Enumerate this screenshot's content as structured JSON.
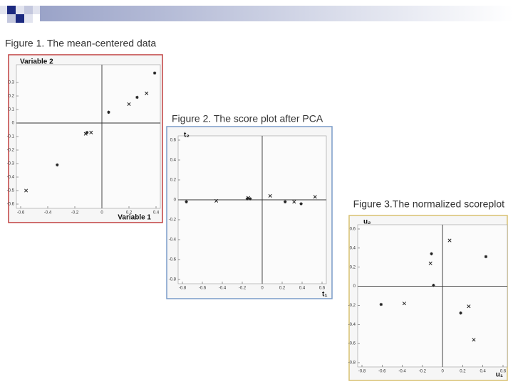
{
  "chart_data": [
    {
      "type": "scatter",
      "title": "Figure 1. The mean-centered data",
      "y_label": "Variable 2",
      "x_label": "Variable 1",
      "x": [
        0.39,
        0.33,
        0.26,
        0.2,
        0.05,
        -0.08,
        -0.11,
        -0.12,
        -0.33,
        -0.56
      ],
      "values": [
        0.37,
        0.22,
        0.19,
        0.14,
        0.08,
        -0.07,
        -0.07,
        -0.08,
        -0.31,
        -0.5
      ],
      "color": "#222",
      "xlim": [
        -0.6,
        0.4
      ],
      "ylim": [
        -0.6,
        0.4
      ],
      "xticks": [
        -0.6,
        -0.4,
        -0.2,
        0,
        0.2,
        0.4
      ],
      "yticks": [
        -0.6,
        -0.5,
        -0.4,
        -0.3,
        -0.2,
        -0.1,
        0,
        0.1,
        0.2,
        0.3
      ]
    },
    {
      "type": "scatter",
      "title": "Figure 2. The score plot after PCA",
      "y_label": "t₂",
      "x_label": "t₁",
      "x": [
        -0.76,
        -0.46,
        -0.15,
        -0.14,
        -0.12,
        0.08,
        0.23,
        0.32,
        0.39,
        0.53
      ],
      "values": [
        -0.02,
        -0.01,
        0.01,
        0.02,
        0.01,
        0.04,
        -0.02,
        -0.02,
        -0.04,
        0.03
      ],
      "color": "#222",
      "xlim": [
        -0.8,
        0.6
      ],
      "ylim": [
        -0.8,
        0.6
      ],
      "xticks": [
        -0.8,
        -0.6,
        -0.4,
        -0.2,
        0,
        0.2,
        0.4,
        0.6
      ],
      "yticks": [
        -0.8,
        -0.6,
        -0.4,
        -0.2,
        0,
        0.2,
        0.4,
        0.6
      ]
    },
    {
      "type": "scatter",
      "title": "Figure 3.The normalized scoreplot",
      "y_label": "u₂",
      "x_label": "u₁",
      "x": [
        -0.61,
        -0.38,
        -0.11,
        -0.12,
        -0.09,
        0.07,
        0.43,
        0.26,
        0.18,
        0.31
      ],
      "values": [
        -0.19,
        -0.18,
        0.34,
        0.24,
        0.01,
        0.48,
        0.31,
        -0.21,
        -0.28,
        -0.56
      ],
      "color": "#222",
      "xlim": [
        -0.8,
        0.6
      ],
      "ylim": [
        -0.8,
        0.6
      ],
      "xticks": [
        -0.8,
        -0.6,
        -0.4,
        -0.2,
        0,
        0.2,
        0.4,
        0.6
      ],
      "yticks": [
        -0.8,
        -0.6,
        -0.4,
        -0.2,
        0,
        0.2,
        0.4,
        0.6
      ]
    }
  ]
}
